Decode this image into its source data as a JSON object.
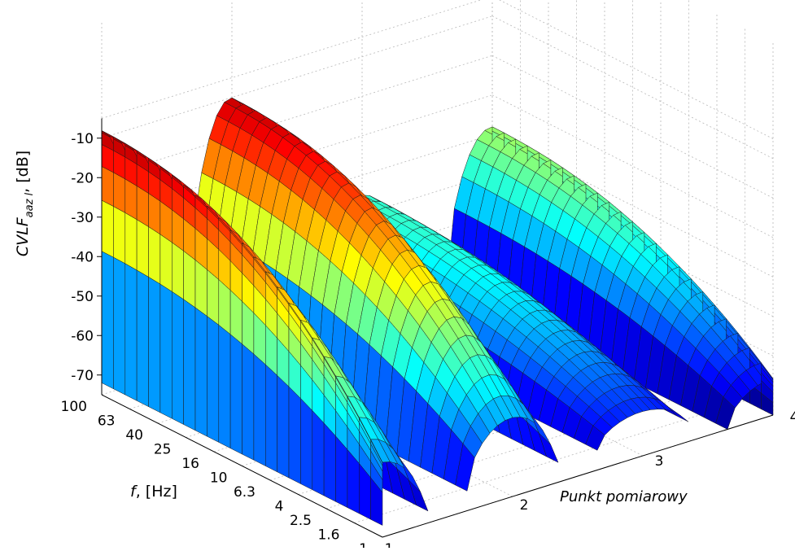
{
  "chart_data": {
    "type": "surface",
    "zlabel_main": "CVLF",
    "zlabel_sub": "aaz l",
    "zlabel_unit": ", [dB]",
    "ylabel_main": "f",
    "ylabel_unit": ", [Hz]",
    "xlabel": "Punkt pomiarowy",
    "x_ticks": [
      "1",
      "2",
      "3",
      "4"
    ],
    "y_ticks": [
      "1",
      "1.6",
      "2.5",
      "4",
      "6.3",
      "10",
      "16",
      "25",
      "40",
      "63",
      "100"
    ],
    "z_ticks": [
      "-10",
      "-20",
      "-30",
      "-40",
      "-50",
      "-60",
      "-70"
    ],
    "z_range": [
      -75,
      -5
    ],
    "grid": true,
    "colormap": "jet",
    "surfaces": [
      {
        "punkt": 1,
        "level_db": -8,
        "base_db": -72
      },
      {
        "punkt": 2,
        "level_db": -10,
        "base_db": -70
      },
      {
        "punkt": 3,
        "level_db": -45,
        "base_db": -70
      },
      {
        "punkt": 4,
        "level_db": -38,
        "base_db": -75
      }
    ]
  }
}
